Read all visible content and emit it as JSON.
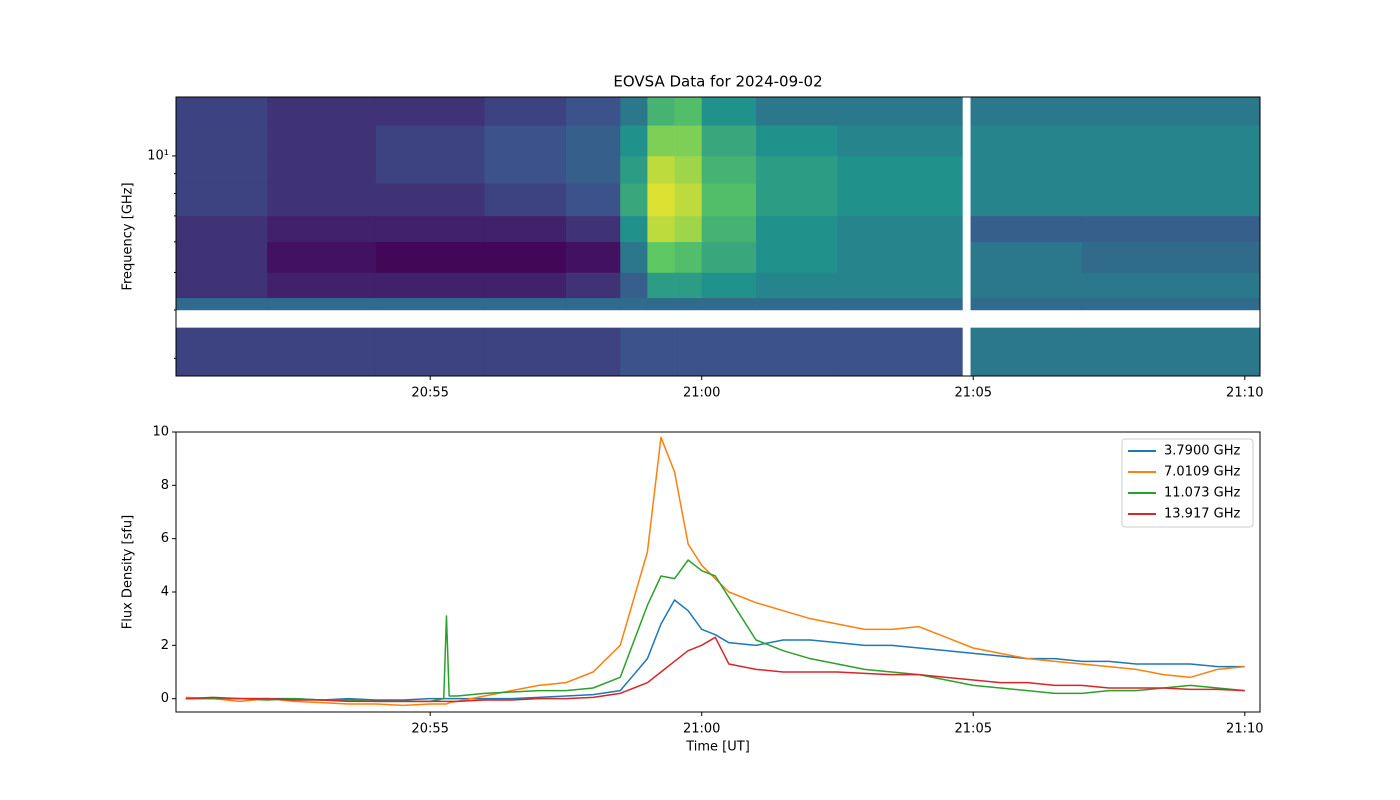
{
  "chart_data": [
    {
      "type": "heatmap",
      "title": "EOVSA Data for 2024-09-02",
      "ylabel": "Frequency [GHz]",
      "colormap": "viridis",
      "yscale": "log",
      "xlim": [
        50.32,
        70.28
      ],
      "ylim": [
        2.7,
        14.2
      ],
      "zlim": [
        0,
        1
      ],
      "xticks": [
        {
          "value": 55,
          "label": "20:55"
        },
        {
          "value": 60,
          "label": "21:00"
        },
        {
          "value": 65,
          "label": "21:05"
        },
        {
          "value": 70,
          "label": "21:10"
        }
      ],
      "yticks": [
        {
          "value": 10,
          "label": "10¹"
        }
      ],
      "yminorticks": [
        3,
        4,
        5,
        6,
        7,
        8,
        9
      ],
      "x_edges": [
        50.32,
        52,
        54,
        56,
        57.5,
        58.5,
        59,
        59.5,
        60,
        61,
        62.5,
        64.8,
        64.95,
        67,
        70.28
      ],
      "y_edges": [
        2.7,
        3.6,
        4.0,
        4.3,
        5,
        6,
        7,
        8.5,
        10,
        12,
        14.2
      ],
      "values": [
        [
          0.2,
          0.2,
          0.2,
          0.2,
          0.2,
          0.25,
          0.25,
          0.25,
          0.25,
          0.25,
          0.25,
          null,
          0.4,
          0.4
        ],
        [
          null,
          null,
          null,
          null,
          null,
          null,
          null,
          null,
          null,
          null,
          null,
          null,
          null,
          null
        ],
        [
          0.35,
          0.35,
          0.35,
          0.35,
          0.35,
          0.35,
          0.35,
          0.35,
          0.35,
          0.35,
          0.35,
          null,
          0.35,
          0.35
        ],
        [
          0.15,
          0.1,
          0.1,
          0.1,
          0.15,
          0.3,
          0.55,
          0.55,
          0.5,
          0.45,
          0.45,
          null,
          0.4,
          0.4
        ],
        [
          0.15,
          0.05,
          0.02,
          0.02,
          0.05,
          0.4,
          0.75,
          0.7,
          0.6,
          0.5,
          0.45,
          null,
          0.4,
          0.35
        ],
        [
          0.15,
          0.1,
          0.1,
          0.1,
          0.15,
          0.5,
          0.9,
          0.85,
          0.65,
          0.5,
          0.45,
          null,
          0.3,
          0.3
        ],
        [
          0.2,
          0.15,
          0.15,
          0.2,
          0.25,
          0.6,
          0.95,
          0.9,
          0.7,
          0.55,
          0.5,
          null,
          0.45,
          0.45
        ],
        [
          0.2,
          0.15,
          0.2,
          0.25,
          0.3,
          0.55,
          0.9,
          0.85,
          0.65,
          0.55,
          0.5,
          null,
          0.45,
          0.45
        ],
        [
          0.2,
          0.15,
          0.2,
          0.25,
          0.3,
          0.5,
          0.8,
          0.8,
          0.6,
          0.5,
          0.45,
          null,
          0.45,
          0.45
        ],
        [
          0.2,
          0.15,
          0.15,
          0.2,
          0.25,
          0.4,
          0.65,
          0.7,
          0.5,
          0.4,
          0.4,
          null,
          0.4,
          0.4
        ]
      ]
    },
    {
      "type": "line",
      "xlabel": "Time [UT]",
      "ylabel": "Flux Density [sfu]",
      "legend": "upper right",
      "xlim": [
        50.32,
        70.28
      ],
      "ylim": [
        -0.5,
        10
      ],
      "xticks": [
        {
          "value": 55,
          "label": "20:55"
        },
        {
          "value": 60,
          "label": "21:00"
        },
        {
          "value": 65,
          "label": "21:05"
        },
        {
          "value": 70,
          "label": "21:10"
        }
      ],
      "yticks": [
        0,
        2,
        4,
        6,
        8,
        10
      ],
      "x": [
        50.5,
        51,
        51.5,
        52,
        52.5,
        53,
        53.5,
        54,
        54.5,
        55,
        55.25,
        55.3,
        55.35,
        55.5,
        56,
        56.5,
        57,
        57.5,
        58,
        58.5,
        59,
        59.25,
        59.5,
        59.75,
        60,
        60.25,
        60.5,
        61,
        61.5,
        62,
        62.5,
        63,
        63.5,
        64,
        64.5,
        65,
        65.5,
        66,
        66.5,
        67,
        67.5,
        68,
        68.5,
        69,
        69.5,
        70
      ],
      "series": [
        {
          "name": "3.7900 GHz",
          "color": "#1f77b4",
          "values": [
            0,
            0,
            0,
            0,
            0,
            -0.05,
            0,
            -0.05,
            -0.05,
            0,
            0,
            0,
            0,
            0,
            0,
            0,
            0.05,
            0.1,
            0.15,
            0.3,
            1.5,
            2.8,
            3.7,
            3.3,
            2.6,
            2.4,
            2.1,
            2.0,
            2.2,
            2.2,
            2.1,
            2.0,
            2.0,
            1.9,
            1.8,
            1.7,
            1.6,
            1.5,
            1.5,
            1.4,
            1.4,
            1.3,
            1.3,
            1.3,
            1.2,
            1.2
          ]
        },
        {
          "name": "7.0109 GHz",
          "color": "#ff7f0e",
          "values": [
            0.05,
            0,
            -0.1,
            0,
            -0.1,
            -0.15,
            -0.2,
            -0.2,
            -0.25,
            -0.2,
            -0.2,
            -0.2,
            -0.15,
            -0.1,
            0.1,
            0.3,
            0.5,
            0.6,
            1.0,
            2.0,
            5.5,
            9.8,
            8.5,
            5.8,
            5.0,
            4.5,
            4.0,
            3.6,
            3.3,
            3.0,
            2.8,
            2.6,
            2.6,
            2.7,
            2.3,
            1.9,
            1.7,
            1.5,
            1.4,
            1.3,
            1.2,
            1.1,
            0.9,
            0.8,
            1.1,
            1.2
          ]
        },
        {
          "name": "11.073 GHz",
          "color": "#2ca02c",
          "values": [
            0,
            0,
            0,
            -0.05,
            0,
            -0.05,
            -0.05,
            -0.1,
            -0.1,
            -0.1,
            0,
            3.1,
            0.1,
            0.1,
            0.2,
            0.25,
            0.3,
            0.3,
            0.4,
            0.8,
            3.5,
            4.6,
            4.5,
            5.2,
            4.8,
            4.6,
            3.8,
            2.2,
            1.8,
            1.5,
            1.3,
            1.1,
            1.0,
            0.9,
            0.7,
            0.5,
            0.4,
            0.3,
            0.2,
            0.2,
            0.3,
            0.3,
            0.4,
            0.5,
            0.4,
            0.3
          ]
        },
        {
          "name": "13.917 GHz",
          "color": "#d62728",
          "values": [
            0,
            0.05,
            0,
            0,
            -0.05,
            -0.05,
            -0.1,
            -0.1,
            -0.1,
            -0.1,
            -0.1,
            -0.1,
            -0.1,
            -0.1,
            -0.05,
            -0.05,
            0,
            0,
            0.05,
            0.2,
            0.6,
            1.0,
            1.4,
            1.8,
            2.0,
            2.3,
            1.3,
            1.1,
            1.0,
            1.0,
            1.0,
            0.95,
            0.9,
            0.9,
            0.8,
            0.7,
            0.6,
            0.6,
            0.5,
            0.5,
            0.4,
            0.4,
            0.4,
            0.35,
            0.35,
            0.3
          ]
        }
      ]
    }
  ]
}
